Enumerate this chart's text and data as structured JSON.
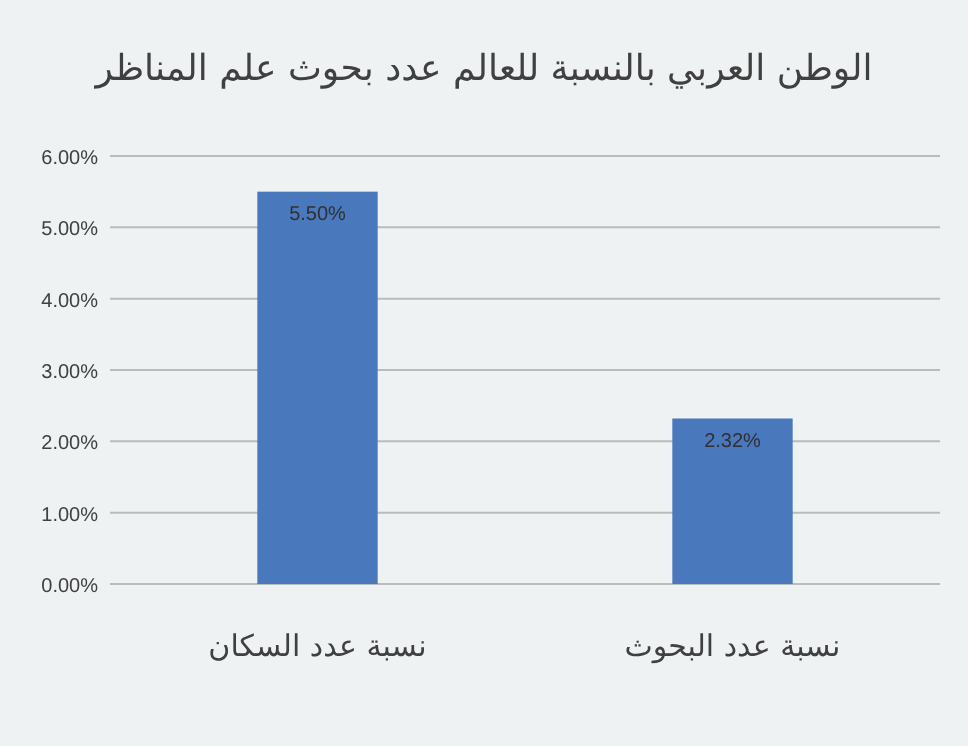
{
  "chart_data": {
    "type": "bar",
    "title": "الوطن العربي بالنسبة للعالم عدد بحوث علم المناظر",
    "categories": [
      "نسبة عدد السكان",
      "نسبة عدد البحوث"
    ],
    "values": [
      5.5,
      2.32
    ],
    "value_labels": [
      "5.50%",
      "2.32%"
    ],
    "color": "#4a78bd",
    "ylim": [
      0,
      6
    ],
    "yticks": [
      {
        "value": 0,
        "label": "0.00%"
      },
      {
        "value": 1,
        "label": "1.00%"
      },
      {
        "value": 2,
        "label": "2.00%"
      },
      {
        "value": 3,
        "label": "3.00%"
      },
      {
        "value": 4,
        "label": "4.00%"
      },
      {
        "value": 5,
        "label": "5.00%"
      },
      {
        "value": 6,
        "label": "6.00%"
      }
    ],
    "grid": "y"
  }
}
